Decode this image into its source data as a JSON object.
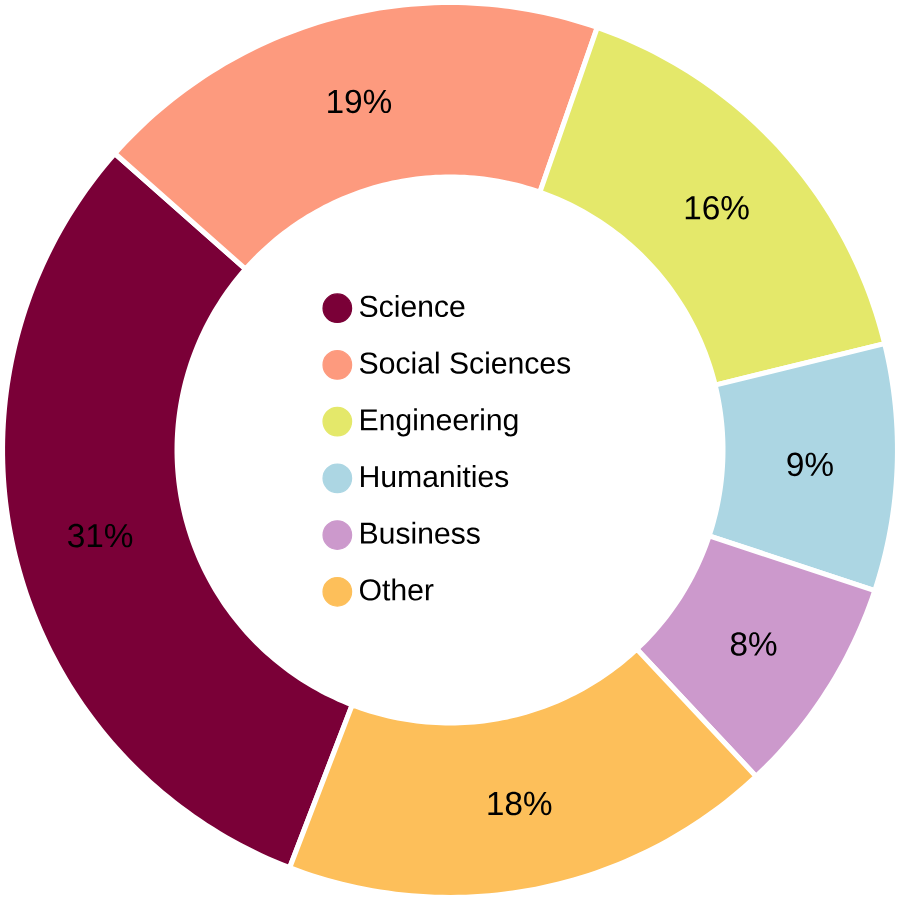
{
  "chart_data": {
    "type": "donut",
    "categories": [
      "Science",
      "Social Sciences",
      "Engineering",
      "Humanities",
      "Business",
      "Other"
    ],
    "values": [
      31,
      19,
      16,
      9,
      8,
      18
    ],
    "value_labels": [
      "31%",
      "19%",
      "16%",
      "9%",
      "8%",
      "18%"
    ],
    "colors": [
      "#7a0037",
      "#fd9a7e",
      "#e4e86a",
      "#acd6e3",
      "#cc99cc",
      "#fdbf5a"
    ],
    "legend": "center"
  }
}
